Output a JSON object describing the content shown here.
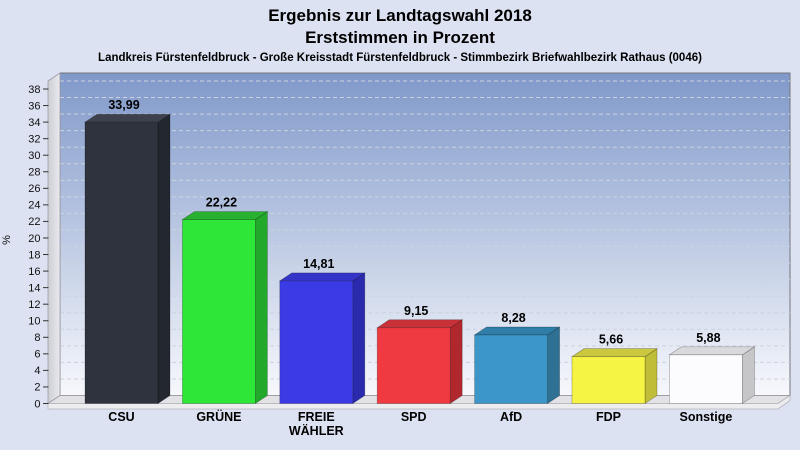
{
  "header": {
    "title_line1": "Ergebnis zur Landtagswahl 2018",
    "title_line2": "Erststimmen in Prozent",
    "subtitle": "Landkreis Fürstenfeldbruck - Große Kreisstadt Fürstenfeldbruck - Stimmbezirk Briefwahlbezirk Rathaus (0046)"
  },
  "y_axis": {
    "label": "%",
    "min": 0,
    "max": 38,
    "step": 2
  },
  "chart_data": {
    "type": "bar",
    "title": "Ergebnis zur Landtagswahl 2018",
    "subtitle": "Erststimmen in Prozent",
    "region_line": "Landkreis Fürstenfeldbruck - Große Kreisstadt Fürstenfeldbruck - Stimmbezirk Briefwahlbezirk Rathaus (0046)",
    "xlabel": "",
    "ylabel": "%",
    "ylim": [
      0,
      38
    ],
    "ytick_step": 2,
    "grid": "horizontal-dashed",
    "legend": "none",
    "style": "3d-bars",
    "categories": [
      "CSU",
      "GRÜNE",
      "FREIE WÄHLER",
      "SPD",
      "AfD",
      "FDP",
      "Sonstige"
    ],
    "category_lines": [
      [
        "CSU"
      ],
      [
        "GRÜNE"
      ],
      [
        "FREIE",
        "WÄHLER"
      ],
      [
        "SPD"
      ],
      [
        "AfD"
      ],
      [
        "FDP"
      ],
      [
        "Sonstige"
      ]
    ],
    "values": [
      33.99,
      22.22,
      14.81,
      9.15,
      8.28,
      5.66,
      5.88
    ],
    "value_labels": [
      "33,99",
      "22,22",
      "14,81",
      "9,15",
      "8,28",
      "5,66",
      "5,88"
    ],
    "bar_colors": [
      {
        "front": "#2e333d",
        "top": "#3c414d",
        "side": "#23272f"
      },
      {
        "front": "#2ee638",
        "top": "#28b12e",
        "side": "#22a82b"
      },
      {
        "front": "#3b3be6",
        "top": "#3434c8",
        "side": "#2a2aad"
      },
      {
        "front": "#ee3a40",
        "top": "#c93138",
        "side": "#b1272e"
      },
      {
        "front": "#3d96c8",
        "top": "#2f7ea9",
        "side": "#2e7194"
      },
      {
        "front": "#f5f343",
        "top": "#cbc83f",
        "side": "#c0bd38"
      },
      {
        "front": "#fcfcfe",
        "top": "#d9d9db",
        "side": "#c6c6c8"
      }
    ]
  },
  "colors": {
    "page_background": "#dce2f2",
    "plot_gradient_top": "#8099ca",
    "plot_gradient_bottom": "#f7f8fc",
    "wall_gray_dark": "#cdcdd5",
    "wall_gray_light": "#e9e9ee",
    "floor_gray": "#e2e2e6",
    "floor_edge": "#ededf0",
    "gridline": "#ccd2de",
    "plot_border": "#73757c",
    "text": "#000000"
  }
}
